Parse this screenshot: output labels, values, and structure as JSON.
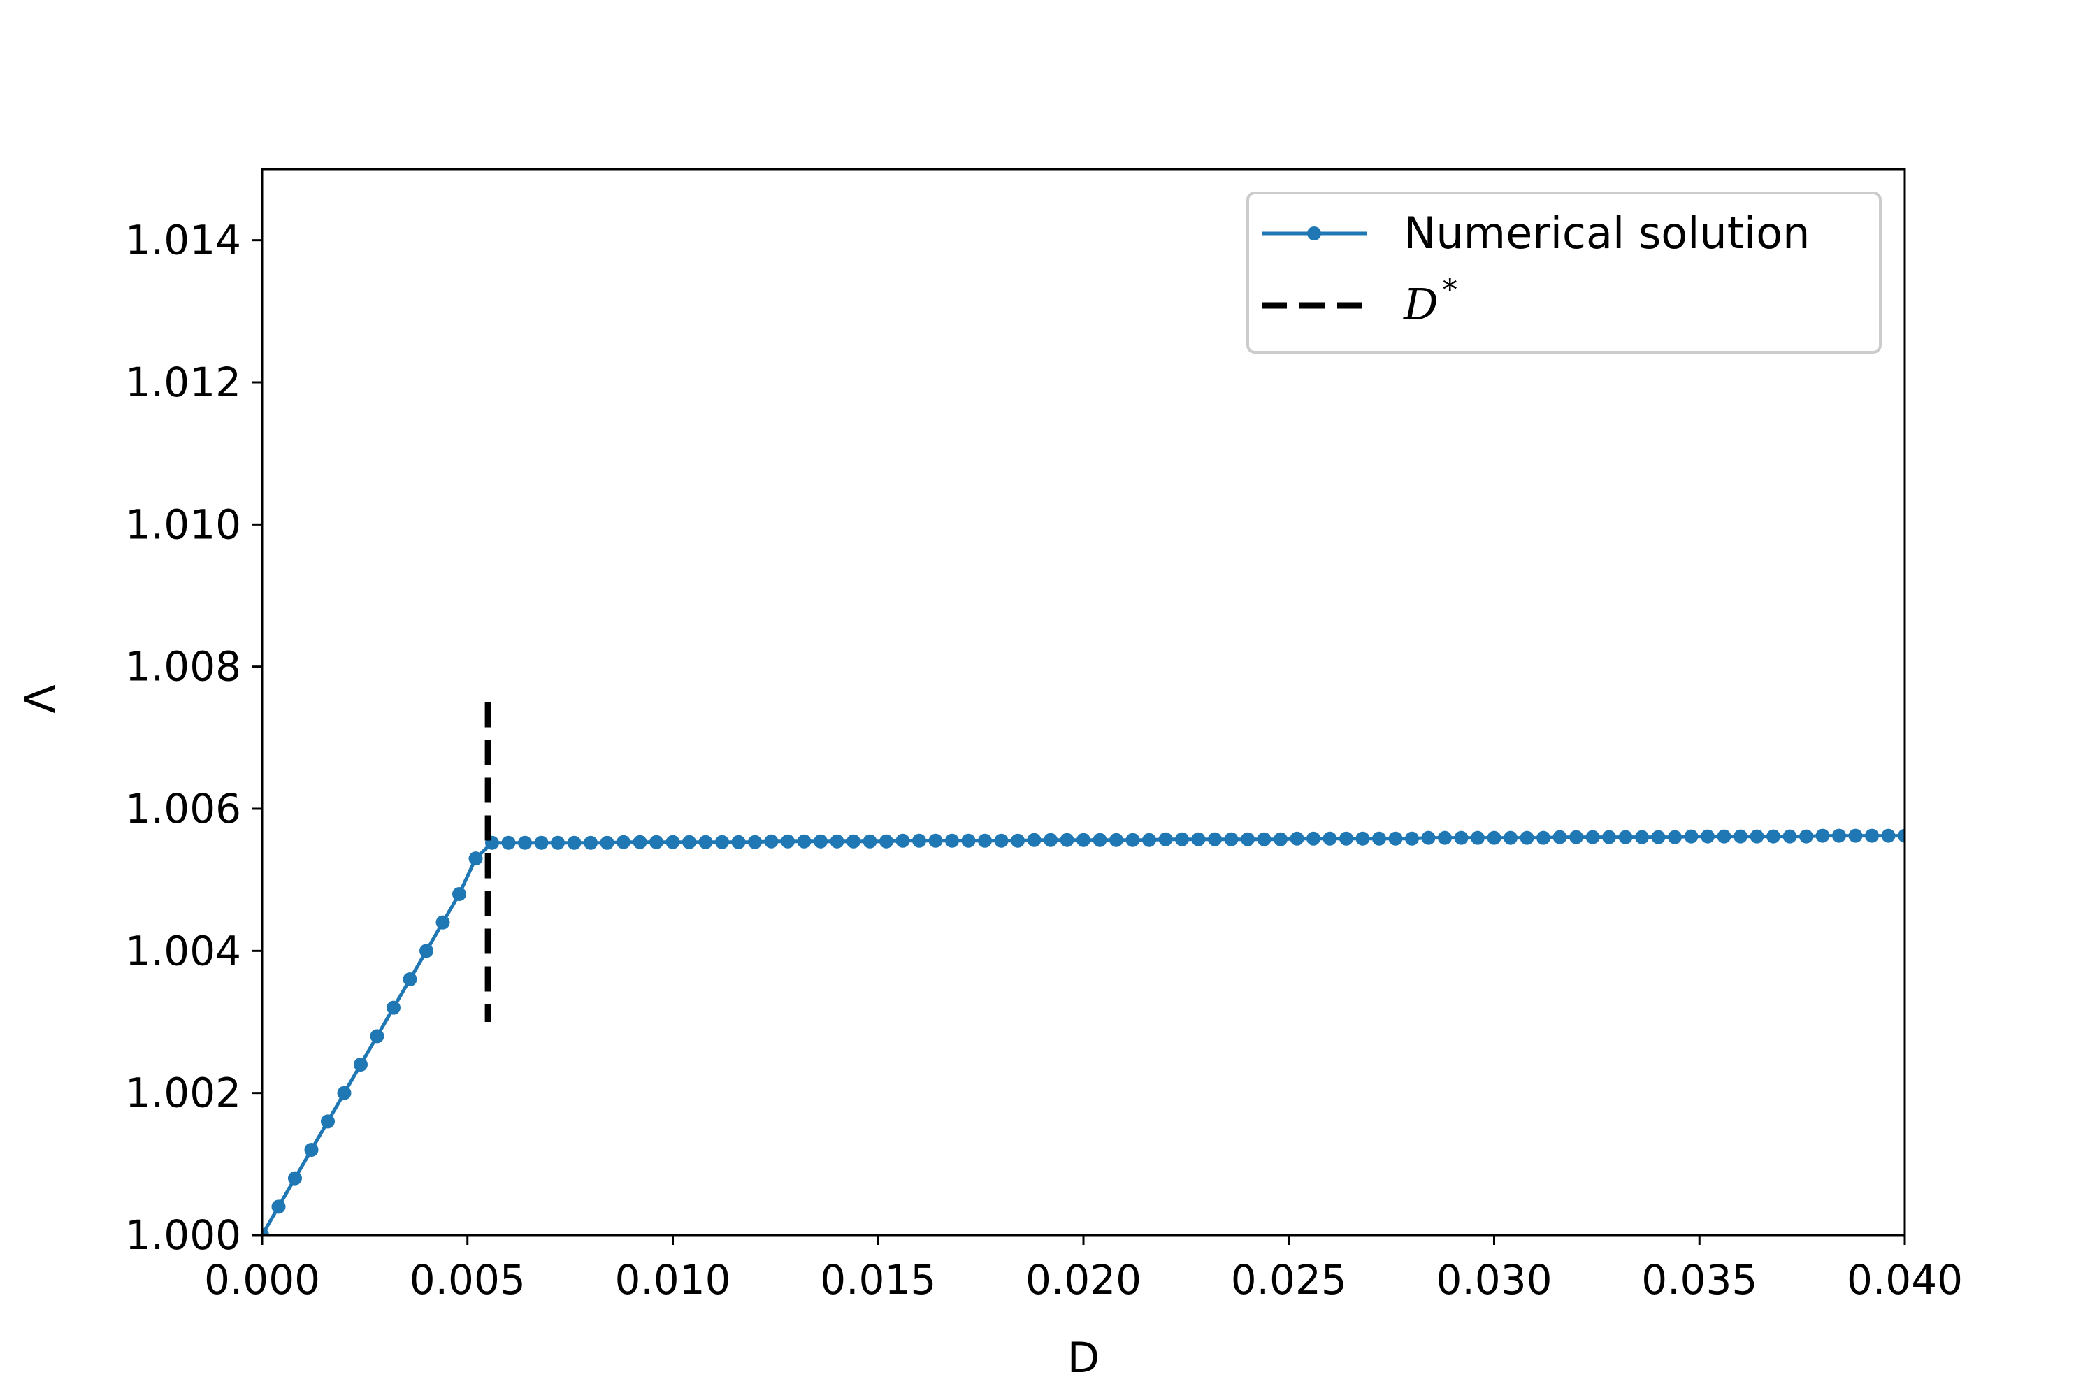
{
  "chart_data": {
    "type": "line",
    "xlabel": "D",
    "ylabel": "Λ",
    "xlim": [
      0.0,
      0.04
    ],
    "ylim": [
      1.0,
      1.015
    ],
    "x_ticks": [
      0.0,
      0.005,
      0.01,
      0.015,
      0.02,
      0.025,
      0.03,
      0.035,
      0.04
    ],
    "x_tick_labels": [
      "0.000",
      "0.005",
      "0.010",
      "0.015",
      "0.020",
      "0.025",
      "0.030",
      "0.035",
      "0.040"
    ],
    "y_ticks": [
      1.0,
      1.002,
      1.004,
      1.006,
      1.008,
      1.01,
      1.012,
      1.014
    ],
    "y_tick_labels": [
      "1.000",
      "1.002",
      "1.004",
      "1.006",
      "1.008",
      "1.010",
      "1.012",
      "1.014"
    ],
    "grid": false,
    "legend_position": "top-right",
    "colors": {
      "series": "#1f77b4",
      "marker_line": "#000000"
    },
    "series": [
      {
        "name": "Numerical solution",
        "x": [
          0.0,
          0.0004,
          0.0008,
          0.0012,
          0.0016,
          0.002,
          0.0024,
          0.0028,
          0.0032,
          0.0036,
          0.004,
          0.0044,
          0.0048,
          0.0052,
          0.0056,
          0.006,
          0.0064,
          0.0068,
          0.0072,
          0.0076,
          0.008,
          0.0084,
          0.0088,
          0.0092,
          0.0096,
          0.01,
          0.0104,
          0.0108,
          0.0112,
          0.0116,
          0.012,
          0.0124,
          0.0128,
          0.0132,
          0.0136,
          0.014,
          0.0144,
          0.0148,
          0.0152,
          0.0156,
          0.016,
          0.0164,
          0.0168,
          0.0172,
          0.0176,
          0.018,
          0.0184,
          0.0188,
          0.0192,
          0.0196,
          0.02,
          0.0204,
          0.0208,
          0.0212,
          0.0216,
          0.022,
          0.0224,
          0.0228,
          0.0232,
          0.0236,
          0.024,
          0.0244,
          0.0248,
          0.0252,
          0.0256,
          0.026,
          0.0264,
          0.0268,
          0.0272,
          0.0276,
          0.028,
          0.0284,
          0.0288,
          0.0292,
          0.0296,
          0.03,
          0.0304,
          0.0308,
          0.0312,
          0.0316,
          0.032,
          0.0324,
          0.0328,
          0.0332,
          0.0336,
          0.034,
          0.0344,
          0.0348,
          0.0352,
          0.0356,
          0.036,
          0.0364,
          0.0368,
          0.0372,
          0.0376,
          0.038,
          0.0384,
          0.0388,
          0.0392,
          0.0396,
          0.04
        ],
        "y": [
          1.0,
          1.0004,
          1.0008,
          1.0012,
          1.0016,
          1.002,
          1.0024,
          1.0028,
          1.0032,
          1.0036,
          1.004,
          1.0044,
          1.0048,
          1.0053,
          1.00552,
          1.00552,
          1.00552,
          1.00552,
          1.00552,
          1.00552,
          1.00552,
          1.00552,
          1.00553,
          1.00553,
          1.00553,
          1.00553,
          1.00553,
          1.00553,
          1.00553,
          1.00553,
          1.00553,
          1.00554,
          1.00554,
          1.00554,
          1.00554,
          1.00554,
          1.00554,
          1.00554,
          1.00554,
          1.00555,
          1.00555,
          1.00555,
          1.00555,
          1.00555,
          1.00555,
          1.00555,
          1.00555,
          1.00556,
          1.00556,
          1.00556,
          1.00556,
          1.00556,
          1.00556,
          1.00556,
          1.00556,
          1.00557,
          1.00557,
          1.00557,
          1.00557,
          1.00557,
          1.00557,
          1.00557,
          1.00557,
          1.00558,
          1.00558,
          1.00558,
          1.00558,
          1.00558,
          1.00558,
          1.00558,
          1.00558,
          1.00559,
          1.00559,
          1.00559,
          1.00559,
          1.00559,
          1.00559,
          1.00559,
          1.00559,
          1.0056,
          1.0056,
          1.0056,
          1.0056,
          1.0056,
          1.0056,
          1.0056,
          1.0056,
          1.00561,
          1.00561,
          1.00561,
          1.00561,
          1.00561,
          1.00561,
          1.00561,
          1.00561,
          1.00562,
          1.00562,
          1.00562,
          1.00562,
          1.00562,
          1.00562
        ]
      }
    ],
    "vlines": [
      {
        "name": "D",
        "superscript": "*",
        "x": 0.0055,
        "ymin": 1.003,
        "ymax": 1.0075,
        "style": "dashed"
      }
    ]
  }
}
